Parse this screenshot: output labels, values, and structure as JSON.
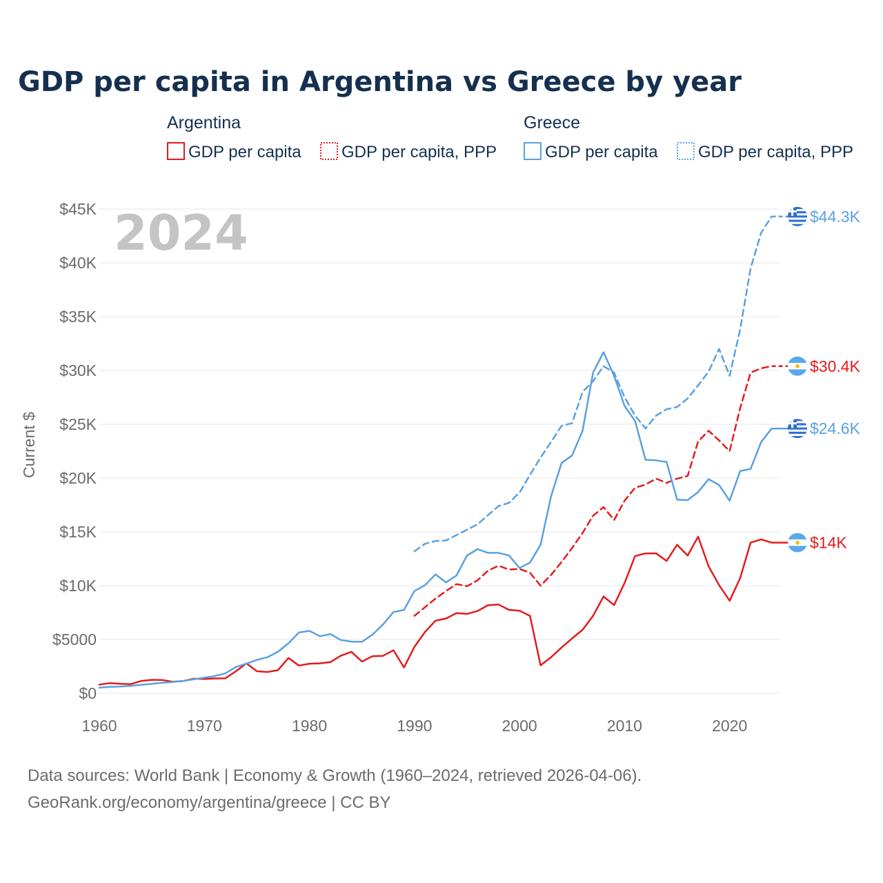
{
  "chart_data": {
    "type": "line",
    "title": "GDP per capita in Argentina vs Greece by year",
    "ylabel": "Current $",
    "year_label": "2024",
    "xlim": [
      1960,
      2025
    ],
    "ylim": [
      0,
      45000
    ],
    "x_ticks": [
      {
        "value": 1960,
        "label": "1960"
      },
      {
        "value": 1970,
        "label": "1970"
      },
      {
        "value": 1980,
        "label": "1980"
      },
      {
        "value": 1990,
        "label": "1990"
      },
      {
        "value": 2000,
        "label": "2000"
      },
      {
        "value": 2010,
        "label": "2010"
      },
      {
        "value": 2020,
        "label": "2020"
      }
    ],
    "y_ticks": [
      {
        "value": 0,
        "label": "$0"
      },
      {
        "value": 5000,
        "label": "$5000"
      },
      {
        "value": 10000,
        "label": "$10K"
      },
      {
        "value": 15000,
        "label": "$15K"
      },
      {
        "value": 20000,
        "label": "$20K"
      },
      {
        "value": 25000,
        "label": "$25K"
      },
      {
        "value": 30000,
        "label": "$30K"
      },
      {
        "value": 35000,
        "label": "$35K"
      },
      {
        "value": 40000,
        "label": "$40K"
      },
      {
        "value": 45000,
        "label": "$45K"
      }
    ],
    "legend": [
      {
        "group": "Argentina",
        "items": [
          {
            "label": "GDP per capita",
            "style": "solid",
            "color": "#e41a1c"
          },
          {
            "label": "GDP per capita, PPP",
            "style": "dotted",
            "color": "#e41a1c"
          }
        ]
      },
      {
        "group": "Greece",
        "items": [
          {
            "label": "GDP per capita",
            "style": "solid",
            "color": "#5aa0e0"
          },
          {
            "label": "GDP per capita, PPP",
            "style": "dotted",
            "color": "#5aa0e0"
          }
        ]
      }
    ],
    "series": [
      {
        "name": "Argentina GDP per capita",
        "country": "Argentina",
        "color": "#e41a1c",
        "dashed": false,
        "end_label": "$14K",
        "x": [
          1960,
          1961,
          1962,
          1963,
          1964,
          1965,
          1966,
          1967,
          1968,
          1969,
          1970,
          1971,
          1972,
          1973,
          1974,
          1975,
          1976,
          1977,
          1978,
          1979,
          1980,
          1981,
          1982,
          1983,
          1984,
          1985,
          1986,
          1987,
          1988,
          1989,
          1990,
          1991,
          1992,
          1993,
          1994,
          1995,
          1996,
          1997,
          1998,
          1999,
          2000,
          2001,
          2002,
          2003,
          2004,
          2005,
          2006,
          2007,
          2008,
          2009,
          2010,
          2011,
          2012,
          2013,
          2014,
          2015,
          2016,
          2017,
          2018,
          2019,
          2020,
          2021,
          2022,
          2023,
          2024
        ],
        "values": [
          800,
          950,
          880,
          850,
          1150,
          1250,
          1230,
          1080,
          1140,
          1350,
          1330,
          1380,
          1400,
          2050,
          2780,
          2050,
          1980,
          2150,
          3280,
          2580,
          2750,
          2780,
          2900,
          3500,
          3850,
          2950,
          3450,
          3480,
          4000,
          2400,
          4320,
          5700,
          6750,
          6950,
          7450,
          7380,
          7650,
          8180,
          8250,
          7750,
          7680,
          7200,
          2600,
          3350,
          4250,
          5100,
          5900,
          7200,
          9000,
          8200,
          10250,
          12750,
          13000,
          13000,
          12300,
          13800,
          12800,
          14550,
          11800,
          10050,
          8600,
          10700,
          14000,
          14300,
          14000
        ]
      },
      {
        "name": "Argentina GDP per capita, PPP",
        "country": "Argentina",
        "color": "#e41a1c",
        "dashed": true,
        "end_label": "$30.4K",
        "x": [
          1990,
          1991,
          1992,
          1993,
          1994,
          1995,
          1996,
          1997,
          1998,
          1999,
          2000,
          2001,
          2002,
          2003,
          2004,
          2005,
          2006,
          2007,
          2008,
          2009,
          2010,
          2011,
          2012,
          2013,
          2014,
          2015,
          2016,
          2017,
          2018,
          2019,
          2020,
          2021,
          2022,
          2023,
          2024
        ],
        "values": [
          7200,
          8000,
          8800,
          9500,
          10150,
          9950,
          10500,
          11400,
          11850,
          11500,
          11550,
          11200,
          10000,
          11000,
          12200,
          13500,
          14900,
          16500,
          17300,
          16100,
          17900,
          19100,
          19400,
          19950,
          19550,
          19950,
          20200,
          23400,
          24400,
          23500,
          22500,
          26500,
          29800,
          30200,
          30400
        ]
      },
      {
        "name": "Greece GDP per capita",
        "country": "Greece",
        "color": "#5aa0e0",
        "dashed": false,
        "end_label": "$24.6K",
        "x": [
          1960,
          1961,
          1962,
          1963,
          1964,
          1965,
          1966,
          1967,
          1968,
          1969,
          1970,
          1971,
          1972,
          1973,
          1974,
          1975,
          1976,
          1977,
          1978,
          1979,
          1980,
          1981,
          1982,
          1983,
          1984,
          1985,
          1986,
          1987,
          1988,
          1989,
          1990,
          1991,
          1992,
          1993,
          1994,
          1995,
          1996,
          1997,
          1998,
          1999,
          2000,
          2001,
          2002,
          2003,
          2004,
          2005,
          2006,
          2007,
          2008,
          2009,
          2010,
          2011,
          2012,
          2013,
          2014,
          2015,
          2016,
          2017,
          2018,
          2019,
          2020,
          2021,
          2022,
          2023,
          2024
        ],
        "values": [
          520,
          600,
          620,
          700,
          780,
          880,
          980,
          1050,
          1150,
          1300,
          1450,
          1600,
          1850,
          2450,
          2750,
          3100,
          3350,
          3850,
          4650,
          5650,
          5800,
          5300,
          5500,
          4950,
          4800,
          4780,
          5450,
          6400,
          7550,
          7750,
          9500,
          10050,
          11050,
          10300,
          10950,
          12800,
          13400,
          13050,
          13050,
          12800,
          11650,
          12150,
          13800,
          18300,
          21400,
          22100,
          24400,
          29800,
          31700,
          29500,
          26700,
          25300,
          21700,
          21650,
          21500,
          18000,
          17950,
          18700,
          19900,
          19350,
          17900,
          20650,
          20850,
          23350,
          24600
        ]
      },
      {
        "name": "Greece GDP per capita, PPP",
        "country": "Greece",
        "color": "#5aa0e0",
        "dashed": true,
        "end_label": "$44.3K",
        "x": [
          1990,
          1991,
          1992,
          1993,
          1994,
          1995,
          1996,
          1997,
          1998,
          1999,
          2000,
          2001,
          2002,
          2003,
          2004,
          2005,
          2006,
          2007,
          2008,
          2009,
          2010,
          2011,
          2012,
          2013,
          2014,
          2015,
          2016,
          2017,
          2018,
          2019,
          2020,
          2021,
          2022,
          2023,
          2024
        ],
        "values": [
          13200,
          13900,
          14150,
          14200,
          14700,
          15200,
          15700,
          16550,
          17400,
          17700,
          18650,
          20300,
          21900,
          23350,
          24850,
          25100,
          28000,
          29000,
          30400,
          29800,
          27500,
          25800,
          24600,
          25800,
          26400,
          26600,
          27400,
          28600,
          29900,
          32000,
          29500,
          33800,
          39500,
          42800,
          44300
        ]
      }
    ],
    "footer": [
      "Data sources: World Bank | Economy & Growth (1960–2024, retrieved 2026-04-06).",
      "GeoRank.org/economy/argentina/greece | CC BY"
    ]
  }
}
